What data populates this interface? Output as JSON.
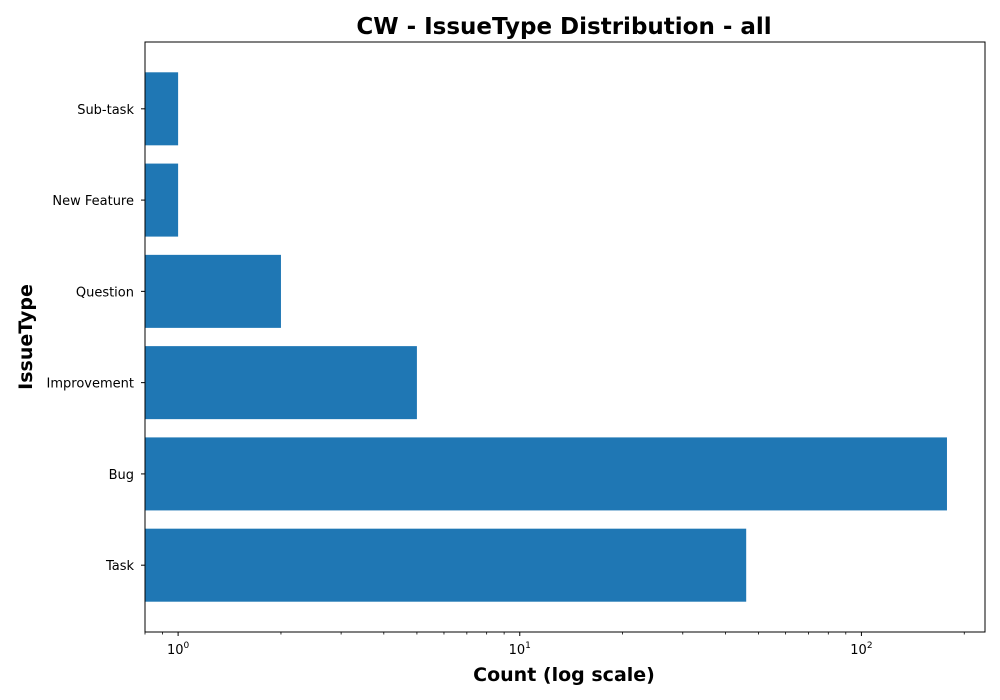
{
  "chart_data": {
    "type": "bar",
    "orientation": "horizontal",
    "title": "CW - IssueType Distribution - all",
    "xlabel": "Count (log scale)",
    "ylabel": "IssueType",
    "x_scale": "log",
    "xlim": [
      0.8,
      230
    ],
    "categories": [
      "Task",
      "Bug",
      "Improvement",
      "Question",
      "New Feature",
      "Sub-task"
    ],
    "values": [
      46,
      178,
      5,
      2,
      1,
      1
    ],
    "bar_color": "#1f77b4",
    "x_major_ticks": [
      {
        "value": 1,
        "base": "10",
        "exponent": "0"
      },
      {
        "value": 10,
        "base": "10",
        "exponent": "1"
      },
      {
        "value": 100,
        "base": "10",
        "exponent": "2"
      }
    ],
    "grid": false,
    "legend": "none"
  }
}
